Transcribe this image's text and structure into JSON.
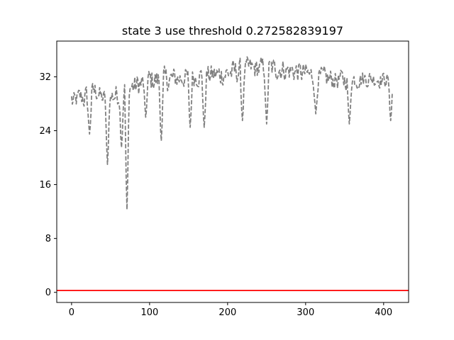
{
  "chart_data": {
    "type": "line",
    "title": "state 3 use threshold 0.272582839197",
    "xlabel": "",
    "ylabel": "",
    "xlim": [
      -19,
      432
    ],
    "ylim": [
      -1.5,
      37.3
    ],
    "xticks": [
      0,
      100,
      200,
      300,
      400
    ],
    "yticks": [
      0,
      8,
      16,
      24,
      32
    ],
    "grid": false,
    "legend": "none",
    "threshold_line": {
      "y": 0.272582839197,
      "color": "#ff0000"
    },
    "series_style": {
      "color": "#808080",
      "dash": "dashed"
    },
    "n_points": 412,
    "series_profile": {
      "x": [
        0,
        10,
        20,
        30,
        40,
        50,
        60,
        70,
        80,
        100,
        120,
        150,
        180,
        200,
        230,
        260,
        290,
        320,
        350,
        380,
        411
      ],
      "upper": [
        30,
        31,
        31.5,
        32,
        30.5,
        31,
        32,
        33,
        33,
        34,
        34,
        34,
        34.5,
        35,
        35.5,
        35.5,
        35,
        34,
        33.5,
        33.5,
        33
      ],
      "lower": [
        26,
        27,
        26,
        28,
        27,
        27,
        27,
        28,
        28,
        29,
        29,
        30,
        30,
        30,
        31,
        31,
        30.5,
        29.5,
        29.5,
        30,
        30
      ]
    },
    "dips": [
      {
        "x": 23,
        "y": 23.5
      },
      {
        "x": 46,
        "y": 19
      },
      {
        "x": 64,
        "y": 21.5
      },
      {
        "x": 71,
        "y": 12.3
      },
      {
        "x": 95,
        "y": 26
      },
      {
        "x": 115,
        "y": 22.5
      },
      {
        "x": 152,
        "y": 24.5
      },
      {
        "x": 170,
        "y": 24.5
      },
      {
        "x": 219,
        "y": 25.5
      },
      {
        "x": 250,
        "y": 25
      },
      {
        "x": 313,
        "y": 26.5
      },
      {
        "x": 356,
        "y": 25
      },
      {
        "x": 409,
        "y": 25.5
      }
    ]
  }
}
